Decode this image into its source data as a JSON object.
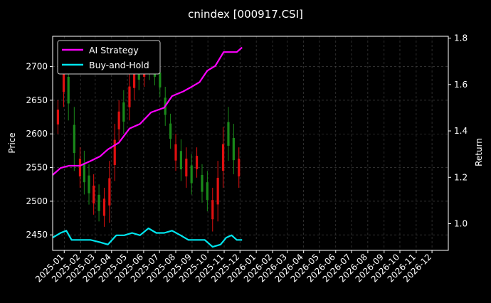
{
  "chart_data": {
    "type": "line",
    "title": "cnindex [000917.CSI]",
    "ylabel_left": "Price",
    "ylabel_right": "Return",
    "x_ticks": [
      "2025-01",
      "2025-02",
      "2025-03",
      "2025-04",
      "2025-05",
      "2025-06",
      "2025-07",
      "2025-08",
      "2025-09",
      "2025-10",
      "2025-11",
      "2025-12",
      "2026-01",
      "2026-02",
      "2026-03",
      "2026-04",
      "2026-05",
      "2026-06",
      "2026-07",
      "2026-08",
      "2026-09",
      "2026-10",
      "2026-11",
      "2026-12"
    ],
    "xlim": [
      "2024-12-10",
      "2027-01-01"
    ],
    "ylim_left": [
      2427,
      2745
    ],
    "yticks_left": [
      2450,
      2500,
      2550,
      2600,
      2650,
      2700
    ],
    "ylim_right": [
      0.885,
      1.808
    ],
    "yticks_right": [
      1.0,
      1.2,
      1.4,
      1.6,
      1.8
    ],
    "grid": true,
    "legend_position": "top-left",
    "colors": {
      "background": "#000000",
      "ai_strategy": "#ff00ff",
      "buy_and_hold": "#00e5ee",
      "candle_up": "#e01010",
      "candle_down": "#1a8a1a",
      "grid": "#4a4a4a"
    },
    "candles": {
      "name": "Price",
      "dates": [
        "2024-12-20",
        "2024-12-31",
        "2025-01-09",
        "2025-01-20",
        "2025-01-31",
        "2025-02-08",
        "2025-02-17",
        "2025-02-26",
        "2025-03-08",
        "2025-03-18",
        "2025-03-28",
        "2025-04-07",
        "2025-04-15",
        "2025-04-24",
        "2025-05-05",
        "2025-05-14",
        "2025-05-23",
        "2025-06-02",
        "2025-06-12",
        "2025-06-22",
        "2025-07-02",
        "2025-07-12",
        "2025-07-22",
        "2025-08-01",
        "2025-08-11",
        "2025-08-21",
        "2025-08-31",
        "2025-09-10",
        "2025-09-20",
        "2025-09-30",
        "2025-10-10",
        "2025-10-20",
        "2025-10-30",
        "2025-11-09",
        "2025-11-19",
        "2025-11-29"
      ],
      "low": [
        2600,
        2640,
        2620,
        2545,
        2520,
        2510,
        2495,
        2480,
        2470,
        2462,
        2468,
        2530,
        2590,
        2600,
        2620,
        2650,
        2665,
        2670,
        2680,
        2672,
        2655,
        2612,
        2578,
        2545,
        2530,
        2520,
        2510,
        2535,
        2498,
        2485,
        2455,
        2470,
        2520,
        2560,
        2540,
        2520
      ],
      "high": [
        2650,
        2720,
        2710,
        2640,
        2580,
        2575,
        2555,
        2540,
        2525,
        2520,
        2560,
        2615,
        2650,
        2665,
        2690,
        2715,
        2720,
        2723,
        2722,
        2718,
        2705,
        2670,
        2630,
        2600,
        2592,
        2580,
        2570,
        2580,
        2555,
        2545,
        2520,
        2560,
        2610,
        2640,
        2615,
        2580
      ],
      "up": [
        true,
        true,
        false,
        false,
        true,
        false,
        false,
        true,
        false,
        true,
        true,
        true,
        true,
        false,
        true,
        true,
        false,
        true,
        false,
        false,
        false,
        false,
        false,
        true,
        false,
        true,
        false,
        true,
        false,
        false,
        true,
        true,
        true,
        false,
        false,
        true
      ]
    },
    "series": [
      {
        "name": "AI Strategy",
        "axis": "right",
        "x": [
          "2024-12-10",
          "2024-12-25",
          "2025-01-10",
          "2025-01-31",
          "2025-02-20",
          "2025-03-10",
          "2025-03-25",
          "2025-04-15",
          "2025-05-05",
          "2025-05-25",
          "2025-06-15",
          "2025-07-10",
          "2025-07-25",
          "2025-08-15",
          "2025-08-31",
          "2025-09-15",
          "2025-09-30",
          "2025-10-15",
          "2025-10-31",
          "2025-11-15",
          "2025-11-25",
          "2025-12-05"
        ],
        "values": [
          1.21,
          1.24,
          1.25,
          1.25,
          1.27,
          1.29,
          1.32,
          1.35,
          1.41,
          1.43,
          1.48,
          1.5,
          1.55,
          1.57,
          1.59,
          1.61,
          1.66,
          1.68,
          1.74,
          1.74,
          1.74,
          1.76
        ]
      },
      {
        "name": "Buy-and-Hold",
        "axis": "right",
        "x": [
          "2024-12-10",
          "2024-12-25",
          "2025-01-05",
          "2025-01-15",
          "2025-02-01",
          "2025-02-20",
          "2025-03-10",
          "2025-03-25",
          "2025-04-10",
          "2025-04-25",
          "2025-05-10",
          "2025-05-25",
          "2025-06-10",
          "2025-06-25",
          "2025-07-10",
          "2025-07-25",
          "2025-08-10",
          "2025-08-25",
          "2025-09-10",
          "2025-09-25",
          "2025-10-10",
          "2025-10-25",
          "2025-11-05",
          "2025-11-15",
          "2025-11-25",
          "2025-12-05"
        ],
        "values": [
          0.94,
          0.96,
          0.97,
          0.93,
          0.93,
          0.93,
          0.92,
          0.91,
          0.95,
          0.95,
          0.96,
          0.95,
          0.98,
          0.96,
          0.96,
          0.97,
          0.95,
          0.93,
          0.93,
          0.93,
          0.9,
          0.91,
          0.94,
          0.95,
          0.93,
          0.93
        ]
      }
    ]
  }
}
